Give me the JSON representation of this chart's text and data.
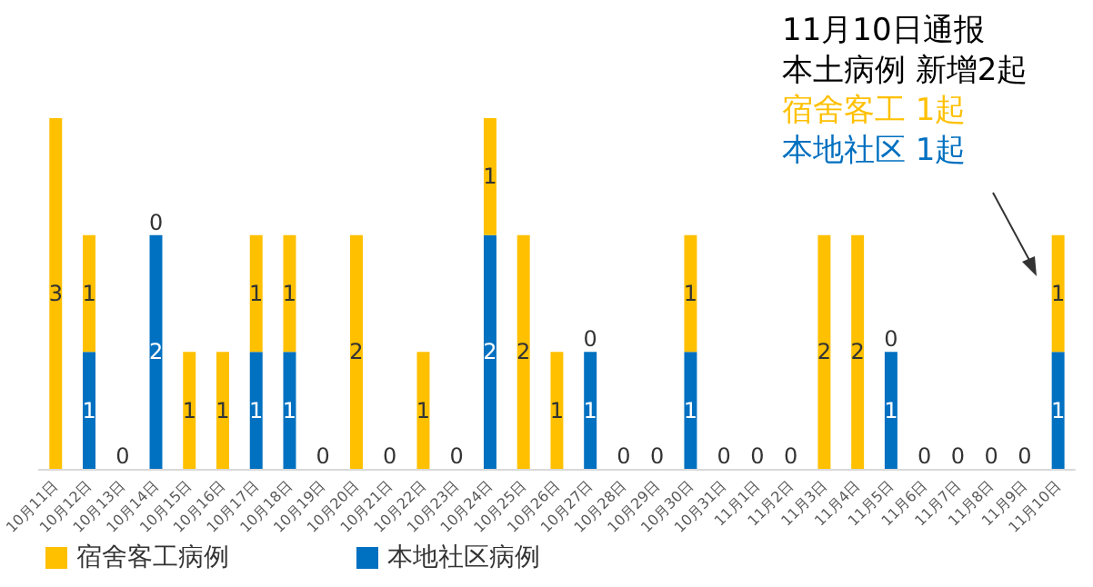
{
  "chart_data": {
    "type": "bar",
    "stacked": true,
    "legend": "bottom left",
    "categories": [
      "10月11日",
      "10月12日",
      "10月13日",
      "10月14日",
      "10月15日",
      "10月16日",
      "10月17日",
      "10月18日",
      "10月19日",
      "10月20日",
      "10月21日",
      "10月22日",
      "10月23日",
      "10月24日",
      "10月25日",
      "10月26日",
      "10月27日",
      "10月28日",
      "10月29日",
      "10月30日",
      "10月31日",
      "11月1日",
      "11月2日",
      "11月3日",
      "11月4日",
      "11月5日",
      "11月6日",
      "11月7日",
      "11月8日",
      "11月9日",
      "11月10日"
    ],
    "series": [
      {
        "name": "本地社区病例",
        "color": "#0070c0",
        "values": [
          0,
          1,
          0,
          2,
          0,
          0,
          1,
          1,
          0,
          0,
          0,
          0,
          0,
          2,
          0,
          0,
          1,
          0,
          0,
          1,
          0,
          0,
          0,
          0,
          0,
          1,
          0,
          0,
          0,
          0,
          1
        ],
        "value_labels": [
          null,
          "1",
          "0",
          "2",
          null,
          null,
          "1",
          "1",
          "0",
          null,
          "0",
          null,
          "0",
          "2",
          null,
          null,
          "1",
          "0",
          "0",
          "1",
          "0",
          "0",
          "0",
          null,
          null,
          "1",
          "0",
          "0",
          "0",
          "0",
          "1"
        ]
      },
      {
        "name": "宿舍客工病例",
        "color": "#ffc000",
        "values": [
          3,
          1,
          0,
          0,
          1,
          1,
          1,
          1,
          0,
          2,
          0,
          1,
          0,
          1,
          2,
          1,
          0,
          0,
          0,
          1,
          0,
          0,
          0,
          2,
          2,
          0,
          0,
          0,
          0,
          0,
          1
        ],
        "value_labels": [
          "3",
          "1",
          null,
          "0",
          "1",
          "1",
          "1",
          "1",
          null,
          "2",
          null,
          "1",
          null,
          "1",
          "2",
          "1",
          "0",
          null,
          null,
          "1",
          null,
          null,
          null,
          "2",
          "2",
          "0",
          null,
          null,
          null,
          null,
          "1"
        ]
      }
    ],
    "annotations": [
      "11月10日通报",
      "本土病例 新增2起",
      "宿舍客工 1起",
      "本地社区 1起"
    ]
  }
}
